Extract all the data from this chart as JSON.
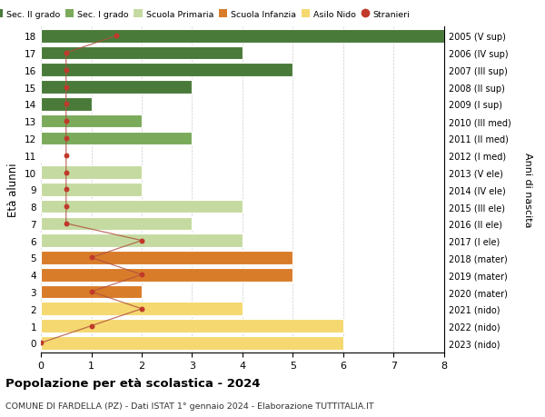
{
  "ages": [
    18,
    17,
    16,
    15,
    14,
    13,
    12,
    11,
    10,
    9,
    8,
    7,
    6,
    5,
    4,
    3,
    2,
    1,
    0
  ],
  "right_labels": [
    "2005 (V sup)",
    "2006 (IV sup)",
    "2007 (III sup)",
    "2008 (II sup)",
    "2009 (I sup)",
    "2010 (III med)",
    "2011 (II med)",
    "2012 (I med)",
    "2013 (V ele)",
    "2014 (IV ele)",
    "2015 (III ele)",
    "2016 (II ele)",
    "2017 (I ele)",
    "2018 (mater)",
    "2019 (mater)",
    "2020 (mater)",
    "2021 (nido)",
    "2022 (nido)",
    "2023 (nido)"
  ],
  "bar_values": [
    8,
    4,
    5,
    3,
    1,
    2,
    3,
    0,
    2,
    2,
    4,
    3,
    4,
    5,
    5,
    2,
    4,
    6,
    6
  ],
  "bar_colors": [
    "#4a7a3a",
    "#4a7a3a",
    "#4a7a3a",
    "#4a7a3a",
    "#4a7a3a",
    "#7aaa5a",
    "#7aaa5a",
    "#7aaa5a",
    "#c5daa0",
    "#c5daa0",
    "#c5daa0",
    "#c5daa0",
    "#c5daa0",
    "#d97c2a",
    "#d97c2a",
    "#d97c2a",
    "#f5d870",
    "#f5d870",
    "#f5d870"
  ],
  "stranieri_values": [
    1.5,
    0.5,
    0.5,
    0.5,
    0.5,
    0.5,
    0.5,
    0.5,
    0.5,
    0.5,
    0.5,
    0.5,
    2,
    1,
    2,
    1,
    2,
    1,
    0
  ],
  "stranieri_color": "#c0392b",
  "line_color": "#b05040",
  "title": "Popolazione per età scolastica - 2024",
  "subtitle": "COMUNE DI FARDELLA (PZ) - Dati ISTAT 1° gennaio 2024 - Elaborazione TUTTITALIA.IT",
  "ylabel": "Età alunni",
  "right_ylabel": "Anni di nascita",
  "xlim": [
    0,
    8
  ],
  "xticks": [
    0,
    1,
    2,
    3,
    4,
    5,
    6,
    7,
    8
  ],
  "bg_color": "#ffffff",
  "grid_color": "#cccccc",
  "legend_labels": [
    "Sec. II grado",
    "Sec. I grado",
    "Scuola Primaria",
    "Scuola Infanzia",
    "Asilo Nido",
    "Stranieri"
  ],
  "legend_colors": [
    "#4a7a3a",
    "#7aaa5a",
    "#c5daa0",
    "#d97c2a",
    "#f5d870",
    "#c0392b"
  ],
  "sec2_color": "#4a7a3a",
  "sec1_color": "#7aaa5a",
  "primaria_color": "#c5daa0",
  "infanzia_color": "#d97c2a",
  "nido_color": "#f5d870"
}
